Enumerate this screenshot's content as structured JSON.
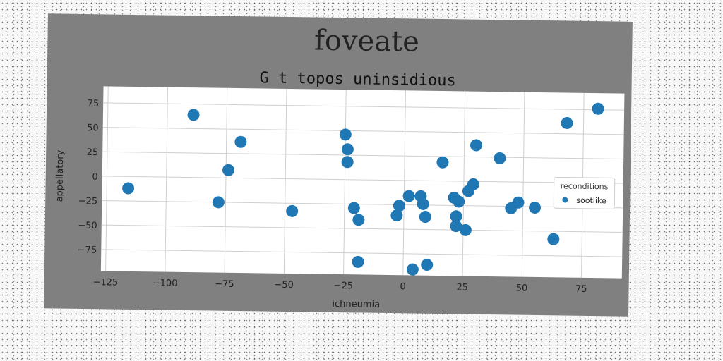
{
  "chart_data": {
    "type": "scatter",
    "suptitle": "foveate",
    "title": "G t topos uninsidious",
    "xlabel": "ichneumia",
    "ylabel": "appellatory",
    "xlim": [
      -127,
      92
    ],
    "ylim": [
      -97,
      92
    ],
    "xticks": [
      -125,
      -100,
      -75,
      -50,
      -25,
      0,
      25,
      50,
      75
    ],
    "yticks": [
      75,
      50,
      25,
      0,
      -25,
      -50,
      -75
    ],
    "grid": true,
    "legend": {
      "title": "reconditions",
      "position": "center-right"
    },
    "series": [
      {
        "name": "sootlike",
        "color": "#1f77b4",
        "x": [
          -116,
          -89,
          -78,
          -74,
          -69,
          -47,
          -25,
          -24,
          -24,
          -21,
          -19,
          -19,
          -3,
          -2,
          2,
          7,
          8,
          9,
          10,
          16,
          21,
          22,
          22,
          23,
          26,
          27,
          29,
          30,
          40,
          45,
          48,
          55,
          63,
          68,
          81
        ],
        "y": [
          -12,
          64,
          -25,
          8,
          37,
          -33,
          46,
          18,
          31,
          -29,
          -41,
          -84,
          -36,
          -26,
          -16,
          -16,
          -24,
          -37,
          -86,
          19,
          -17,
          -36,
          -46,
          -21,
          -50,
          -10,
          -3,
          37,
          24,
          -27,
          -21,
          -26,
          -58,
          61,
          76
        ]
      },
      {
        "name": "",
        "color": "#1f77b4",
        "x": [
          4
        ],
        "y": [
          -91
        ]
      }
    ]
  }
}
